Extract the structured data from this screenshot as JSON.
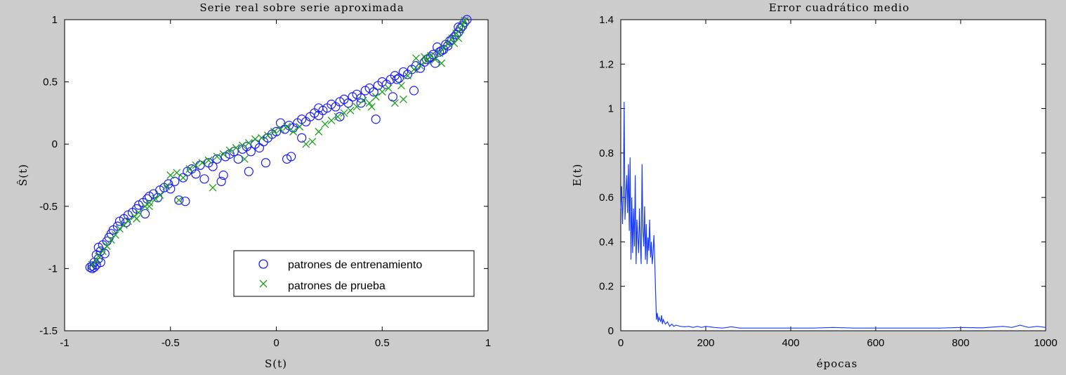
{
  "chart_data": [
    {
      "type": "scatter",
      "title": "Serie real sobre serie aproximada",
      "xlabel": "S(t)",
      "ylabel": "Ŝ(t)",
      "xlim": [
        -1,
        1
      ],
      "ylim": [
        -1.5,
        1
      ],
      "xticks": [
        "-1",
        "-0.5",
        "0",
        "0.5",
        "1"
      ],
      "yticks": [
        "-1.5",
        "-1",
        "-0.5",
        "0",
        "0.5",
        "1"
      ],
      "grid": false,
      "legend_position": "lower-right",
      "series": [
        {
          "name": "patrones de entrenamiento",
          "marker": "circle",
          "color": "#1a1aff",
          "points": [
            [
              -0.88,
              -0.99
            ],
            [
              -0.87,
              -0.98
            ],
            [
              -0.86,
              -0.99
            ],
            [
              -0.85,
              -0.97
            ],
            [
              -0.86,
              -0.95
            ],
            [
              -0.84,
              -0.92
            ],
            [
              -0.85,
              -0.89
            ],
            [
              -0.83,
              -0.86
            ],
            [
              -0.84,
              -0.83
            ],
            [
              -0.82,
              -0.81
            ],
            [
              -0.8,
              -0.78
            ],
            [
              -0.79,
              -0.75
            ],
            [
              -0.78,
              -0.72
            ],
            [
              -0.77,
              -0.69
            ],
            [
              -0.75,
              -0.66
            ],
            [
              -0.74,
              -0.62
            ],
            [
              -0.72,
              -0.6
            ],
            [
              -0.71,
              -0.63
            ],
            [
              -0.7,
              -0.57
            ],
            [
              -0.68,
              -0.55
            ],
            [
              -0.66,
              -0.52
            ],
            [
              -0.65,
              -0.49
            ],
            [
              -0.63,
              -0.47
            ],
            [
              -0.61,
              -0.44
            ],
            [
              -0.6,
              -0.42
            ],
            [
              -0.58,
              -0.4
            ],
            [
              -0.56,
              -0.43
            ],
            [
              -0.55,
              -0.37
            ],
            [
              -0.53,
              -0.35
            ],
            [
              -0.51,
              -0.32
            ],
            [
              -0.5,
              -0.36
            ],
            [
              -0.48,
              -0.3
            ],
            [
              -0.46,
              -0.45
            ],
            [
              -0.44,
              -0.27
            ],
            [
              -0.42,
              -0.22
            ],
            [
              -0.4,
              -0.2
            ],
            [
              -0.38,
              -0.24
            ],
            [
              -0.36,
              -0.17
            ],
            [
              -0.34,
              -0.28
            ],
            [
              -0.32,
              -0.15
            ],
            [
              -0.3,
              -0.18
            ],
            [
              -0.28,
              -0.12
            ],
            [
              -0.26,
              -0.3
            ],
            [
              -0.24,
              -0.1
            ],
            [
              -0.22,
              -0.08
            ],
            [
              -0.2,
              -0.06
            ],
            [
              -0.18,
              -0.12
            ],
            [
              -0.16,
              -0.04
            ],
            [
              -0.14,
              -0.02
            ],
            [
              -0.12,
              -0.06
            ],
            [
              -0.1,
              0.0
            ],
            [
              -0.08,
              -0.03
            ],
            [
              -0.06,
              0.02
            ],
            [
              -0.04,
              0.05
            ],
            [
              -0.02,
              0.08
            ],
            [
              0.0,
              0.1
            ],
            [
              0.02,
              0.17
            ],
            [
              0.04,
              0.12
            ],
            [
              0.06,
              0.15
            ],
            [
              0.08,
              0.13
            ],
            [
              0.1,
              0.17
            ],
            [
              0.12,
              0.2
            ],
            [
              0.14,
              0.18
            ],
            [
              0.16,
              0.22
            ],
            [
              0.18,
              0.25
            ],
            [
              0.2,
              0.23
            ],
            [
              0.22,
              0.27
            ],
            [
              0.24,
              0.29
            ],
            [
              0.26,
              0.32
            ],
            [
              0.28,
              0.3
            ],
            [
              0.3,
              0.34
            ],
            [
              0.32,
              0.36
            ],
            [
              0.34,
              0.33
            ],
            [
              0.36,
              0.38
            ],
            [
              0.38,
              0.4
            ],
            [
              0.4,
              0.37
            ],
            [
              0.42,
              0.43
            ],
            [
              0.44,
              0.45
            ],
            [
              0.46,
              0.42
            ],
            [
              0.48,
              0.47
            ],
            [
              0.5,
              0.5
            ],
            [
              0.52,
              0.48
            ],
            [
              0.54,
              0.52
            ],
            [
              0.56,
              0.55
            ],
            [
              0.58,
              0.53
            ],
            [
              0.6,
              0.58
            ],
            [
              0.62,
              0.56
            ],
            [
              0.64,
              0.6
            ],
            [
              0.66,
              0.63
            ],
            [
              0.68,
              0.61
            ],
            [
              0.7,
              0.66
            ],
            [
              0.72,
              0.69
            ],
            [
              0.74,
              0.72
            ],
            [
              0.76,
              0.78
            ],
            [
              0.78,
              0.75
            ],
            [
              0.8,
              0.8
            ],
            [
              0.82,
              0.83
            ],
            [
              0.84,
              0.86
            ],
            [
              0.86,
              0.9
            ],
            [
              0.88,
              0.95
            ],
            [
              0.89,
              0.98
            ],
            [
              0.87,
              0.93
            ],
            [
              0.85,
              0.88
            ],
            [
              0.83,
              0.84
            ],
            [
              0.81,
              0.79
            ],
            [
              0.79,
              0.76
            ],
            [
              0.77,
              0.74
            ],
            [
              0.75,
              0.65
            ],
            [
              0.73,
              0.7
            ],
            [
              0.71,
              0.68
            ],
            [
              -0.43,
              -0.46
            ],
            [
              -0.62,
              -0.56
            ],
            [
              0.12,
              0.05
            ],
            [
              0.05,
              -0.12
            ],
            [
              0.07,
              -0.1
            ],
            [
              0.3,
              0.22
            ],
            [
              0.47,
              0.2
            ],
            [
              0.55,
              0.38
            ],
            [
              0.65,
              0.43
            ],
            [
              -0.13,
              -0.22
            ],
            [
              -0.25,
              -0.25
            ],
            [
              -0.05,
              -0.15
            ],
            [
              0.2,
              0.29
            ],
            [
              0.4,
              0.33
            ],
            [
              0.57,
              0.52
            ],
            [
              0.9,
              1.0
            ],
            [
              0.86,
              0.94
            ],
            [
              -0.87,
              -1.0
            ],
            [
              -0.83,
              -0.95
            ],
            [
              -0.81,
              -0.88
            ]
          ]
        },
        {
          "name": "patrones de prueba",
          "marker": "x",
          "color": "#1aa01a",
          "points": [
            [
              -0.87,
              -0.97
            ],
            [
              -0.85,
              -0.94
            ],
            [
              -0.84,
              -0.9
            ],
            [
              -0.82,
              -0.86
            ],
            [
              -0.8,
              -0.82
            ],
            [
              -0.78,
              -0.77
            ],
            [
              -0.76,
              -0.73
            ],
            [
              -0.74,
              -0.68
            ],
            [
              -0.72,
              -0.65
            ],
            [
              -0.7,
              -0.62
            ],
            [
              -0.67,
              -0.58
            ],
            [
              -0.65,
              -0.55
            ],
            [
              -0.62,
              -0.5
            ],
            [
              -0.6,
              -0.47
            ],
            [
              -0.57,
              -0.44
            ],
            [
              -0.55,
              -0.41
            ],
            [
              -0.52,
              -0.34
            ],
            [
              -0.5,
              -0.25
            ],
            [
              -0.47,
              -0.23
            ],
            [
              -0.44,
              -0.27
            ],
            [
              -0.41,
              -0.2
            ],
            [
              -0.38,
              -0.17
            ],
            [
              -0.35,
              -0.15
            ],
            [
              -0.32,
              -0.13
            ],
            [
              -0.28,
              -0.1
            ],
            [
              -0.25,
              -0.08
            ],
            [
              -0.22,
              -0.05
            ],
            [
              -0.19,
              -0.03
            ],
            [
              -0.16,
              -0.01
            ],
            [
              -0.13,
              0.01
            ],
            [
              -0.1,
              0.04
            ],
            [
              -0.07,
              0.05
            ],
            [
              -0.04,
              0.07
            ],
            [
              -0.01,
              0.1
            ],
            [
              0.02,
              0.12
            ],
            [
              0.05,
              0.14
            ],
            [
              0.08,
              0.1
            ],
            [
              0.11,
              0.14
            ],
            [
              0.14,
              0.0
            ],
            [
              0.17,
              0.02
            ],
            [
              0.2,
              0.1
            ],
            [
              0.23,
              0.16
            ],
            [
              0.26,
              0.19
            ],
            [
              0.29,
              0.22
            ],
            [
              0.32,
              0.25
            ],
            [
              0.35,
              0.27
            ],
            [
              0.38,
              0.3
            ],
            [
              0.41,
              0.35
            ],
            [
              0.44,
              0.33
            ],
            [
              0.47,
              0.38
            ],
            [
              0.5,
              0.42
            ],
            [
              0.53,
              0.45
            ],
            [
              0.56,
              0.33
            ],
            [
              0.59,
              0.47
            ],
            [
              0.62,
              0.55
            ],
            [
              0.65,
              0.6
            ],
            [
              0.68,
              0.63
            ],
            [
              0.71,
              0.67
            ],
            [
              0.73,
              0.71
            ],
            [
              0.75,
              0.68
            ],
            [
              0.77,
              0.73
            ],
            [
              0.79,
              0.77
            ],
            [
              0.81,
              0.81
            ],
            [
              0.83,
              0.85
            ],
            [
              0.85,
              0.89
            ],
            [
              0.87,
              0.92
            ],
            [
              0.88,
              0.96
            ],
            [
              0.89,
              0.99
            ],
            [
              0.86,
              0.85
            ],
            [
              0.84,
              0.81
            ],
            [
              0.7,
              0.7
            ],
            [
              0.66,
              0.69
            ],
            [
              0.78,
              0.65
            ],
            [
              0.6,
              0.36
            ],
            [
              0.45,
              0.3
            ],
            [
              -0.3,
              -0.35
            ],
            [
              -0.15,
              -0.12
            ],
            [
              -0.6,
              -0.5
            ],
            [
              -0.46,
              -0.45
            ],
            [
              -0.66,
              -0.6
            ]
          ]
        }
      ]
    },
    {
      "type": "line",
      "title": "Error cuadrático medio",
      "xlabel": "épocas",
      "ylabel": "E(t)",
      "xlim": [
        0,
        1000
      ],
      "ylim": [
        0,
        1.4
      ],
      "xticks": [
        "0",
        "200",
        "400",
        "600",
        "800",
        "1000"
      ],
      "yticks": [
        "0",
        "0.2",
        "0.4",
        "0.6",
        "0.8",
        "1",
        "1.2",
        "1.4"
      ],
      "grid": false,
      "color": "#1a3cff",
      "series": [
        {
          "x": [
            0,
            2,
            4,
            6,
            8,
            10,
            12,
            14,
            16,
            18,
            20,
            22,
            24,
            26,
            28,
            30,
            32,
            34,
            36,
            38,
            40,
            42,
            44,
            46,
            48,
            50,
            52,
            54,
            56,
            58,
            60,
            62,
            64,
            66,
            68,
            70,
            72,
            74,
            76,
            78,
            80,
            82,
            84,
            86,
            88,
            90,
            92,
            94,
            96,
            98,
            100,
            105,
            110,
            115,
            120,
            125,
            130,
            140,
            150,
            160,
            170,
            180,
            190,
            200,
            220,
            240,
            260,
            280,
            300,
            350,
            400,
            450,
            500,
            550,
            600,
            650,
            700,
            750,
            800,
            850,
            900,
            920,
            940,
            960,
            980,
            1000
          ],
          "y": [
            0.55,
            0.65,
            0.48,
            0.6,
            1.03,
            0.5,
            0.62,
            0.7,
            0.53,
            0.75,
            0.45,
            0.78,
            0.32,
            0.6,
            0.35,
            0.55,
            0.38,
            0.7,
            0.3,
            0.5,
            0.42,
            0.35,
            0.55,
            0.4,
            0.3,
            0.75,
            0.45,
            0.38,
            0.56,
            0.32,
            0.48,
            0.3,
            0.42,
            0.36,
            0.5,
            0.33,
            0.4,
            0.3,
            0.35,
            0.43,
            0.31,
            0.17,
            0.05,
            0.08,
            0.04,
            0.06,
            0.05,
            0.04,
            0.07,
            0.03,
            0.05,
            0.03,
            0.04,
            0.02,
            0.03,
            0.02,
            0.025,
            0.02,
            0.018,
            0.02,
            0.015,
            0.02,
            0.015,
            0.02,
            0.015,
            0.012,
            0.018,
            0.012,
            0.012,
            0.012,
            0.012,
            0.012,
            0.015,
            0.012,
            0.012,
            0.012,
            0.012,
            0.012,
            0.015,
            0.013,
            0.02,
            0.015,
            0.025,
            0.015,
            0.02,
            0.015
          ]
        }
      ]
    }
  ]
}
